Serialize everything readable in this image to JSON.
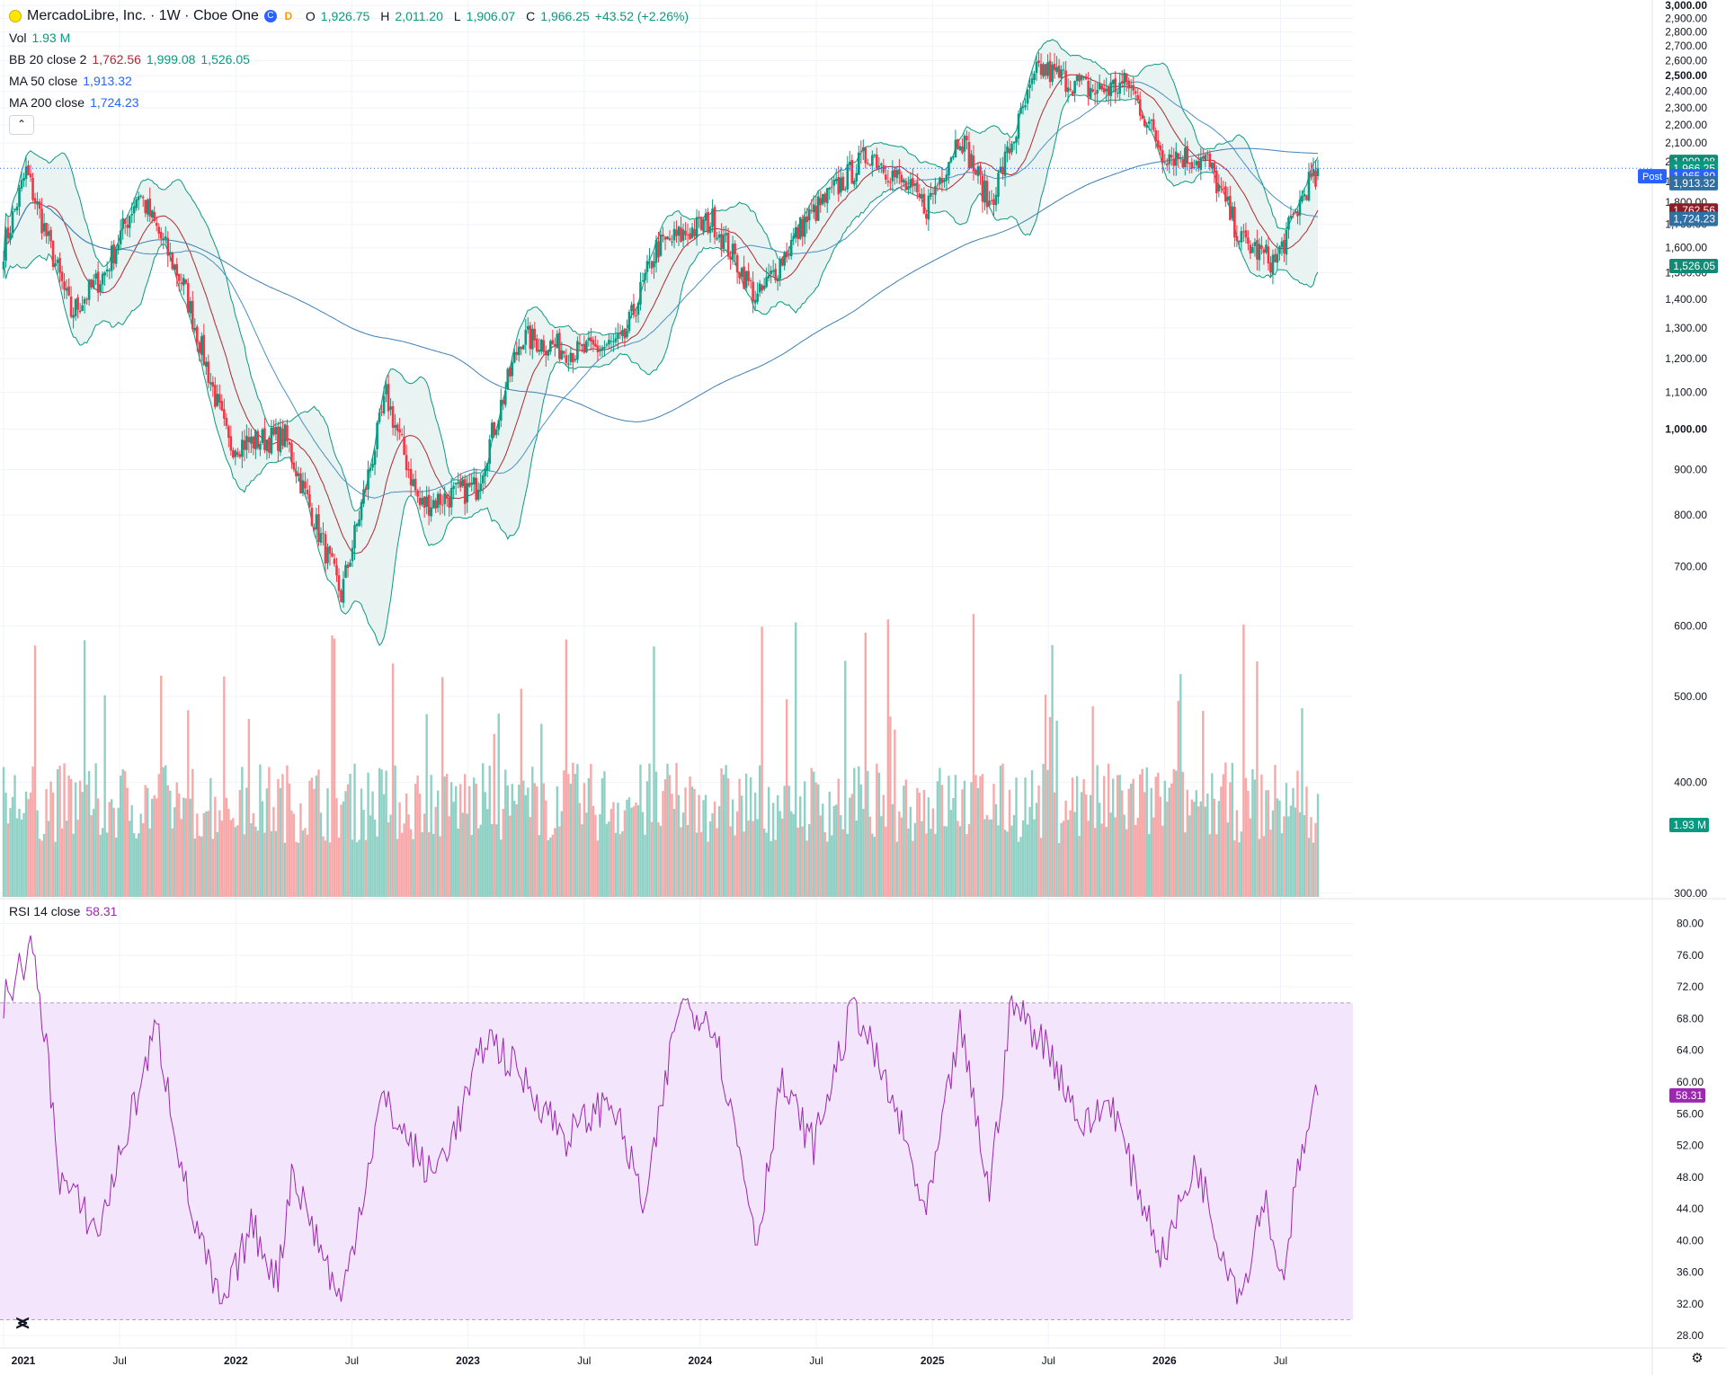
{
  "header": {
    "symbol": "MercadoLibre, Inc. · 1W · Cboe One",
    "c_badge": "C",
    "d_badge": "D",
    "o_key": "O",
    "o_val": "1,926.75",
    "h_key": "H",
    "h_val": "2,011.20",
    "l_key": "L",
    "l_val": "1,906.07",
    "c_key": "C",
    "c_val": "1,966.25",
    "change": "+43.52 (+2.26%)"
  },
  "indicators": {
    "vol_label": "Vol",
    "vol_value": "1.93 M",
    "bb_label": "BB 20 close 2",
    "bb_mid": "1,762.56",
    "bb_up": "1,999.08",
    "bb_low": "1,526.05",
    "ma50_label": "MA 50 close",
    "ma50_value": "1,913.32",
    "ma200_label": "MA 200 close",
    "ma200_value": "1,724.23",
    "collapse_icon": "chevron-up-icon",
    "rsi_label": "RSI 14 close",
    "rsi_value": "58.31"
  },
  "price_scale_badges": {
    "bb_upper": "1,999.08",
    "last": "1,966.25",
    "post_label": "Post",
    "post": "1,965.80",
    "ma50": "1,913.32",
    "bb_mid": "1,762.56",
    "ma200": "1,724.23",
    "bb_lower": "1,526.05",
    "volume": "1.93 M",
    "rsi": "58.31"
  },
  "colors": {
    "up": "#089981",
    "down": "#f23645",
    "vol_up": "#8fd1c5",
    "vol_down": "#f7a9a9",
    "bb": "#089981",
    "bb_mid": "#b22833",
    "bb_fill": "#e9f4f2",
    "ma50": "#2962ff",
    "ma200": "#2962ff",
    "rsi": "#9c27b0",
    "rsi_band": "#f3e5fc",
    "grid": "#f0f3fa",
    "text": "#131722"
  },
  "chart_data": [
    {
      "type": "candlestick",
      "title": "MercadoLibre, Inc. · 1W · Cboe One",
      "x_labels": [
        "2021",
        "Jul",
        "2022",
        "Jul",
        "2023",
        "Jul",
        "2024",
        "Jul",
        "2025",
        "Jul",
        "2026",
        "Jul"
      ],
      "y_ticks": [
        "3,000.00",
        "2,900.00",
        "2,800.00",
        "2,700.00",
        "2,600.00",
        "2,500.00",
        "2,400.00",
        "2,300.00",
        "2,200.00",
        "2,100.00",
        "2,000.00",
        "1,900.00",
        "1,800.00",
        "1,700.00",
        "1,600.00",
        "1,500.00",
        "1,400.00",
        "1,300.00",
        "1,200.00",
        "1,100.00",
        "1,000.00",
        "900.00",
        "800.00",
        "700.00",
        "600.00",
        "500.00",
        "400.00",
        "300.00"
      ],
      "ylim": [
        300,
        3000
      ],
      "scale": "log",
      "close_anchors": [
        {
          "x": 0,
          "close": 1600
        },
        {
          "x": 10,
          "close": 1950
        },
        {
          "x": 30,
          "close": 1350
        },
        {
          "x": 45,
          "close": 1500
        },
        {
          "x": 60,
          "close": 1850
        },
        {
          "x": 80,
          "close": 1450
        },
        {
          "x": 100,
          "close": 960
        },
        {
          "x": 125,
          "close": 980
        },
        {
          "x": 150,
          "close": 650
        },
        {
          "x": 170,
          "close": 1090
        },
        {
          "x": 185,
          "close": 820
        },
        {
          "x": 210,
          "close": 860
        },
        {
          "x": 230,
          "close": 1270
        },
        {
          "x": 255,
          "close": 1220
        },
        {
          "x": 275,
          "close": 1250
        },
        {
          "x": 290,
          "close": 1600
        },
        {
          "x": 315,
          "close": 1720
        },
        {
          "x": 335,
          "close": 1400
        },
        {
          "x": 355,
          "close": 1700
        },
        {
          "x": 385,
          "close": 2050
        },
        {
          "x": 410,
          "close": 1780
        },
        {
          "x": 425,
          "close": 2150
        },
        {
          "x": 438,
          "close": 1790
        },
        {
          "x": 460,
          "close": 2550
        },
        {
          "x": 485,
          "close": 2400
        },
        {
          "x": 500,
          "close": 2450
        },
        {
          "x": 515,
          "close": 2050
        },
        {
          "x": 535,
          "close": 2000
        },
        {
          "x": 550,
          "close": 1630
        },
        {
          "x": 565,
          "close": 1540
        },
        {
          "x": 580,
          "close": 1900
        }
      ],
      "last": {
        "open": 1926.75,
        "high": 2011.2,
        "low": 1906.07,
        "close": 1966.25
      },
      "series": [
        {
          "name": "BB 20 close 2",
          "upper": 1999.08,
          "basis": 1762.56,
          "lower": 1526.05
        },
        {
          "name": "MA 50 close",
          "value": 1913.32
        },
        {
          "name": "MA 200 close",
          "value": 1724.23
        },
        {
          "name": "Vol",
          "value": "1.93 M"
        }
      ]
    },
    {
      "type": "line",
      "title": "RSI 14 close",
      "y_ticks": [
        "80.00",
        "76.00",
        "72.00",
        "68.00",
        "64.00",
        "60.00",
        "56.00",
        "52.00",
        "48.00",
        "44.00",
        "40.00",
        "36.00",
        "32.00",
        "28.00"
      ],
      "ylim": [
        27,
        82
      ],
      "band": [
        30,
        70
      ],
      "last_value": 58.31,
      "anchors": [
        {
          "x": 0,
          "v": 70
        },
        {
          "x": 12,
          "v": 77
        },
        {
          "x": 18,
          "v": 67
        },
        {
          "x": 25,
          "v": 48
        },
        {
          "x": 42,
          "v": 41
        },
        {
          "x": 68,
          "v": 67
        },
        {
          "x": 82,
          "v": 45
        },
        {
          "x": 97,
          "v": 31
        },
        {
          "x": 110,
          "v": 42
        },
        {
          "x": 122,
          "v": 35
        },
        {
          "x": 128,
          "v": 49
        },
        {
          "x": 150,
          "v": 32
        },
        {
          "x": 168,
          "v": 58
        },
        {
          "x": 190,
          "v": 48
        },
        {
          "x": 202,
          "v": 55
        },
        {
          "x": 215,
          "v": 66
        },
        {
          "x": 232,
          "v": 60
        },
        {
          "x": 250,
          "v": 53
        },
        {
          "x": 270,
          "v": 58
        },
        {
          "x": 285,
          "v": 44
        },
        {
          "x": 300,
          "v": 70
        },
        {
          "x": 315,
          "v": 68
        },
        {
          "x": 335,
          "v": 40
        },
        {
          "x": 345,
          "v": 60
        },
        {
          "x": 360,
          "v": 52
        },
        {
          "x": 378,
          "v": 70
        },
        {
          "x": 398,
          "v": 55
        },
        {
          "x": 410,
          "v": 43
        },
        {
          "x": 425,
          "v": 67
        },
        {
          "x": 438,
          "v": 46
        },
        {
          "x": 448,
          "v": 70
        },
        {
          "x": 465,
          "v": 64
        },
        {
          "x": 480,
          "v": 54
        },
        {
          "x": 492,
          "v": 58
        },
        {
          "x": 500,
          "v": 50
        },
        {
          "x": 515,
          "v": 38
        },
        {
          "x": 530,
          "v": 50
        },
        {
          "x": 540,
          "v": 40
        },
        {
          "x": 550,
          "v": 33
        },
        {
          "x": 560,
          "v": 46
        },
        {
          "x": 568,
          "v": 35
        },
        {
          "x": 576,
          "v": 50
        },
        {
          "x": 584,
          "v": 58.31
        }
      ]
    }
  ]
}
